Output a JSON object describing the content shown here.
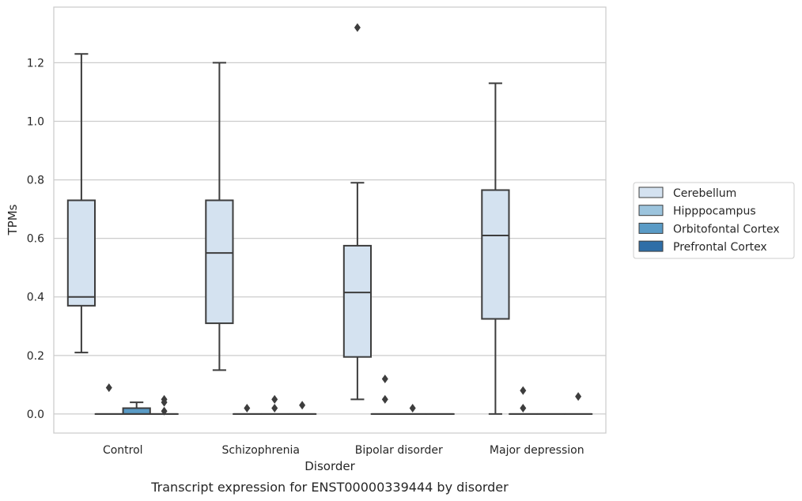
{
  "chart_data": {
    "type": "boxplot",
    "caption": "Transcript expression for ENST00000339444 by disorder",
    "xlabel": "Disorder",
    "ylabel": "TPMs",
    "ylim": [
      -0.065,
      1.39
    ],
    "yticks": [
      "0.0",
      "0.2",
      "0.4",
      "0.6",
      "0.8",
      "1.0",
      "1.2"
    ],
    "grid": "horizontal",
    "legend_position": "right",
    "categories": [
      "Control",
      "Schizophrenia",
      "Bipolar disorder",
      "Major depression"
    ],
    "series": [
      {
        "name": "Cerebellum",
        "color": "#d4e2f0",
        "boxes": [
          {
            "whislo": 0.21,
            "q1": 0.37,
            "med": 0.4,
            "q3": 0.73,
            "whishi": 1.23,
            "fliers": []
          },
          {
            "whislo": 0.15,
            "q1": 0.31,
            "med": 0.55,
            "q3": 0.73,
            "whishi": 1.2,
            "fliers": []
          },
          {
            "whislo": 0.05,
            "q1": 0.195,
            "med": 0.415,
            "q3": 0.575,
            "whishi": 0.79,
            "fliers": [
              1.32
            ]
          },
          {
            "whislo": 0.0,
            "q1": 0.325,
            "med": 0.61,
            "q3": 0.765,
            "whishi": 1.13,
            "fliers": []
          }
        ]
      },
      {
        "name": "Hipppocampus",
        "color": "#9cc4dd",
        "boxes": [
          {
            "whislo": 0.0,
            "q1": 0.0,
            "med": 0.0,
            "q3": 0.0,
            "whishi": 0.0,
            "fliers": [
              0.09
            ]
          },
          {
            "whislo": 0.0,
            "q1": 0.0,
            "med": 0.0,
            "q3": 0.0,
            "whishi": 0.0,
            "fliers": [
              0.02
            ]
          },
          {
            "whislo": 0.0,
            "q1": 0.0,
            "med": 0.0,
            "q3": 0.0,
            "whishi": 0.0,
            "fliers": [
              0.12,
              0.05
            ]
          },
          {
            "whislo": 0.0,
            "q1": 0.0,
            "med": 0.0,
            "q3": 0.0,
            "whishi": 0.0,
            "fliers": [
              0.08,
              0.02
            ]
          }
        ]
      },
      {
        "name": "Orbitofontal Cortex",
        "color": "#5a9bc6",
        "boxes": [
          {
            "whislo": 0.0,
            "q1": 0.0,
            "med": 0.0,
            "q3": 0.02,
            "whishi": 0.04,
            "fliers": []
          },
          {
            "whislo": 0.0,
            "q1": 0.0,
            "med": 0.0,
            "q3": 0.0,
            "whishi": 0.0,
            "fliers": [
              0.05,
              0.02
            ]
          },
          {
            "whislo": 0.0,
            "q1": 0.0,
            "med": 0.0,
            "q3": 0.0,
            "whishi": 0.0,
            "fliers": [
              0.02
            ]
          },
          {
            "whislo": 0.0,
            "q1": 0.0,
            "med": 0.0,
            "q3": 0.0,
            "whishi": 0.0,
            "fliers": []
          }
        ]
      },
      {
        "name": "Prefrontal Cortex",
        "color": "#2f6ea7",
        "boxes": [
          {
            "whislo": 0.0,
            "q1": 0.0,
            "med": 0.0,
            "q3": 0.0,
            "whishi": 0.0,
            "fliers": [
              0.05,
              0.04,
              0.01
            ]
          },
          {
            "whislo": 0.0,
            "q1": 0.0,
            "med": 0.0,
            "q3": 0.0,
            "whishi": 0.0,
            "fliers": [
              0.03
            ]
          },
          {
            "whislo": 0.0,
            "q1": 0.0,
            "med": 0.0,
            "q3": 0.0,
            "whishi": 0.0,
            "fliers": []
          },
          {
            "whislo": 0.0,
            "q1": 0.0,
            "med": 0.0,
            "q3": 0.0,
            "whishi": 0.0,
            "fliers": [
              0.06
            ]
          }
        ]
      }
    ]
  }
}
